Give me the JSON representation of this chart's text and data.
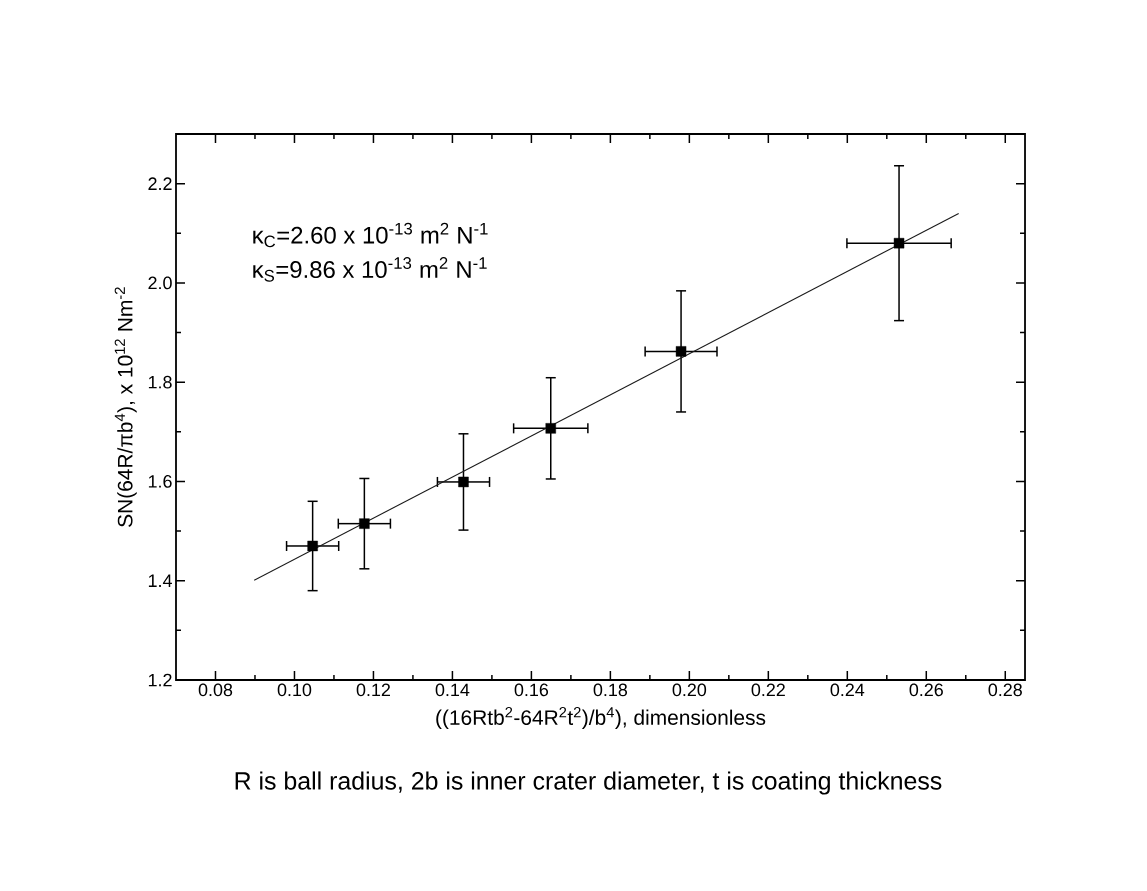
{
  "chart_data": {
    "type": "scatter",
    "xlabel": "((16Rtb$^{2}$-64R$^{2}$t$^{2}$)/b$^{4}$), dimensionless",
    "ylabel": "SN(64R/πb$^{4}$), x 10$^{12}$ Nm$^{-2}$",
    "annotations": [
      "κ$_{C}$=2.60 x 10$^{-13}$ m$^{2}$ N$^{-1}$",
      "κ$_{S}$=9.86 x 10$^{-13}$ m$^{2}$ N$^{-1}$",
      "R is ball radius, 2b is inner crater diameter, t is coating thickness"
    ],
    "xlim": [
      0.07,
      0.285
    ],
    "ylim": [
      1.2,
      2.3
    ],
    "xticks": [
      0.08,
      {
        "value": 0.1,
        "label": "0.10"
      },
      0.12,
      0.14,
      0.16,
      0.18,
      {
        "value": 0.2,
        "label": "0.20"
      },
      0.22,
      0.24,
      0.26,
      0.28
    ],
    "yticks": [
      1.2,
      1.4,
      1.6,
      1.8,
      {
        "value": 2.0,
        "label": "2.0"
      },
      2.2
    ],
    "series": [
      {
        "marker": "square",
        "color": "#000000",
        "x": [
          0.1046,
          0.1177,
          0.1428,
          0.1649,
          0.1979,
          0.2531
        ],
        "values": [
          1.47,
          1.515,
          1.599,
          1.707,
          1.862,
          2.08
        ],
        "errors": [
          0.09,
          0.091,
          0.097,
          0.102,
          0.122,
          0.156
        ],
        "xerrors": [
          0.0066,
          0.0066,
          0.0066,
          0.0094,
          0.0091,
          0.0132
        ]
      },
      {
        "type": "line",
        "color": "#1a1a1a",
        "x": [
          0.0898,
          0.2682
        ],
        "values": [
          1.401,
          2.14
        ]
      }
    ]
  }
}
